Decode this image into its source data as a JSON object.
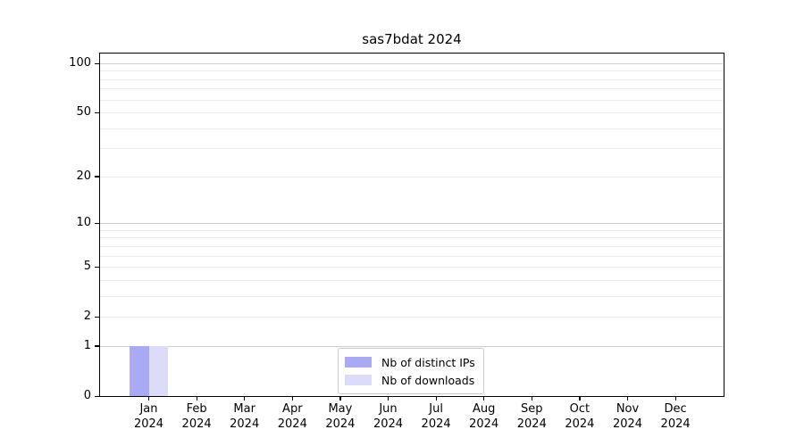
{
  "chart_data": {
    "type": "bar",
    "title": "sas7bdat 2024",
    "categories": [
      {
        "month": "Jan",
        "year": "2024"
      },
      {
        "month": "Feb",
        "year": "2024"
      },
      {
        "month": "Mar",
        "year": "2024"
      },
      {
        "month": "Apr",
        "year": "2024"
      },
      {
        "month": "May",
        "year": "2024"
      },
      {
        "month": "Jun",
        "year": "2024"
      },
      {
        "month": "Jul",
        "year": "2024"
      },
      {
        "month": "Aug",
        "year": "2024"
      },
      {
        "month": "Sep",
        "year": "2024"
      },
      {
        "month": "Oct",
        "year": "2024"
      },
      {
        "month": "Nov",
        "year": "2024"
      },
      {
        "month": "Dec",
        "year": "2024"
      }
    ],
    "series": [
      {
        "name": "Nb of distinct IPs",
        "color": "#aaaaf2",
        "values": [
          1,
          0,
          0,
          0,
          0,
          0,
          0,
          0,
          0,
          0,
          0,
          0
        ]
      },
      {
        "name": "Nb of downloads",
        "color": "#dcdcf8",
        "values": [
          1,
          0,
          0,
          0,
          0,
          0,
          0,
          0,
          0,
          0,
          0,
          0
        ]
      }
    ],
    "y_scale": "log1p",
    "ylim": [
      0,
      115
    ],
    "y_tick_values": [
      0,
      1,
      2,
      5,
      10,
      20,
      50,
      100
    ],
    "y_major_gridlines": [
      1,
      10,
      100
    ],
    "y_minor_gridlines": [
      2,
      3,
      4,
      5,
      6,
      7,
      8,
      9,
      20,
      30,
      40,
      50,
      60,
      70,
      80,
      90
    ],
    "grid": "horizontal",
    "legend_position": "lower center",
    "colors": {
      "major_grid": "#cfcfcf",
      "minor_grid": "#ececec",
      "spine": "#000000",
      "background": "#ffffff"
    }
  }
}
